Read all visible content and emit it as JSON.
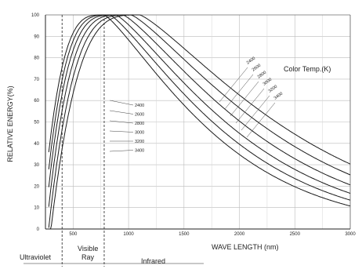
{
  "chart_data": {
    "type": "line",
    "xlabel": "WAVE LENGTH (nm)",
    "ylabel": "RELATIVE ENERGY(%)",
    "xlim": [
      250,
      3000
    ],
    "ylim": [
      0,
      100
    ],
    "x_ticks": [
      500,
      1000,
      1500,
      2000,
      2500,
      3000
    ],
    "x_tick_labels": [
      "500",
      "1000",
      "1500",
      "2000",
      "2500",
      "3000"
    ],
    "y_ticks": [
      0,
      10,
      20,
      30,
      40,
      50,
      60,
      70,
      80,
      90,
      100
    ],
    "y_tick_labels": [
      "0",
      "10",
      "20",
      "30",
      "40",
      "50",
      "60",
      "70",
      "80",
      "90",
      "100"
    ],
    "legend_title": "Color Temp.(K)",
    "regions": [
      {
        "label": "Ultraviolet",
        "from": 250,
        "to": 400
      },
      {
        "label": "Visible Ray",
        "from": 400,
        "to": 780
      },
      {
        "label": "Infrared",
        "from": 780,
        "to": 3000
      }
    ],
    "grid": true,
    "series": [
      {
        "name": "2400",
        "peak_nm": 1200,
        "values_at": [
          [
            500,
            26
          ],
          [
            600,
            70
          ],
          [
            800,
            98
          ],
          [
            1000,
            100
          ],
          [
            1200,
            100
          ],
          [
            1500,
            85
          ],
          [
            2000,
            60
          ],
          [
            2500,
            42
          ],
          [
            3000,
            32
          ]
        ]
      },
      {
        "name": "2600",
        "peak_nm": 1115,
        "values_at": [
          [
            500,
            30
          ],
          [
            600,
            75
          ],
          [
            800,
            98
          ],
          [
            1000,
            100
          ],
          [
            1115,
            100
          ],
          [
            1500,
            80
          ],
          [
            2000,
            55
          ],
          [
            2500,
            38
          ],
          [
            3000,
            28
          ]
        ]
      },
      {
        "name": "2800",
        "peak_nm": 1035,
        "values_at": [
          [
            500,
            34
          ],
          [
            600,
            78
          ],
          [
            800,
            98
          ],
          [
            1035,
            100
          ],
          [
            1500,
            77
          ],
          [
            2000,
            50
          ],
          [
            2500,
            34
          ],
          [
            3000,
            24
          ]
        ]
      },
      {
        "name": "3000",
        "peak_nm": 965,
        "values_at": [
          [
            500,
            39
          ],
          [
            600,
            82
          ],
          [
            800,
            99
          ],
          [
            965,
            100
          ],
          [
            1500,
            73
          ],
          [
            2000,
            46
          ],
          [
            2500,
            30
          ],
          [
            3000,
            20
          ]
        ]
      },
      {
        "name": "3200",
        "peak_nm": 905,
        "values_at": [
          [
            500,
            44
          ],
          [
            600,
            86
          ],
          [
            800,
            99
          ],
          [
            905,
            100
          ],
          [
            1500,
            70
          ],
          [
            2000,
            43
          ],
          [
            2500,
            26
          ],
          [
            3000,
            16
          ]
        ]
      },
      {
        "name": "3400",
        "peak_nm": 850,
        "values_at": [
          [
            500,
            49
          ],
          [
            600,
            88
          ],
          [
            850,
            100
          ],
          [
            1500,
            66
          ],
          [
            2000,
            39
          ],
          [
            2500,
            23
          ],
          [
            3000,
            13
          ]
        ]
      }
    ]
  }
}
